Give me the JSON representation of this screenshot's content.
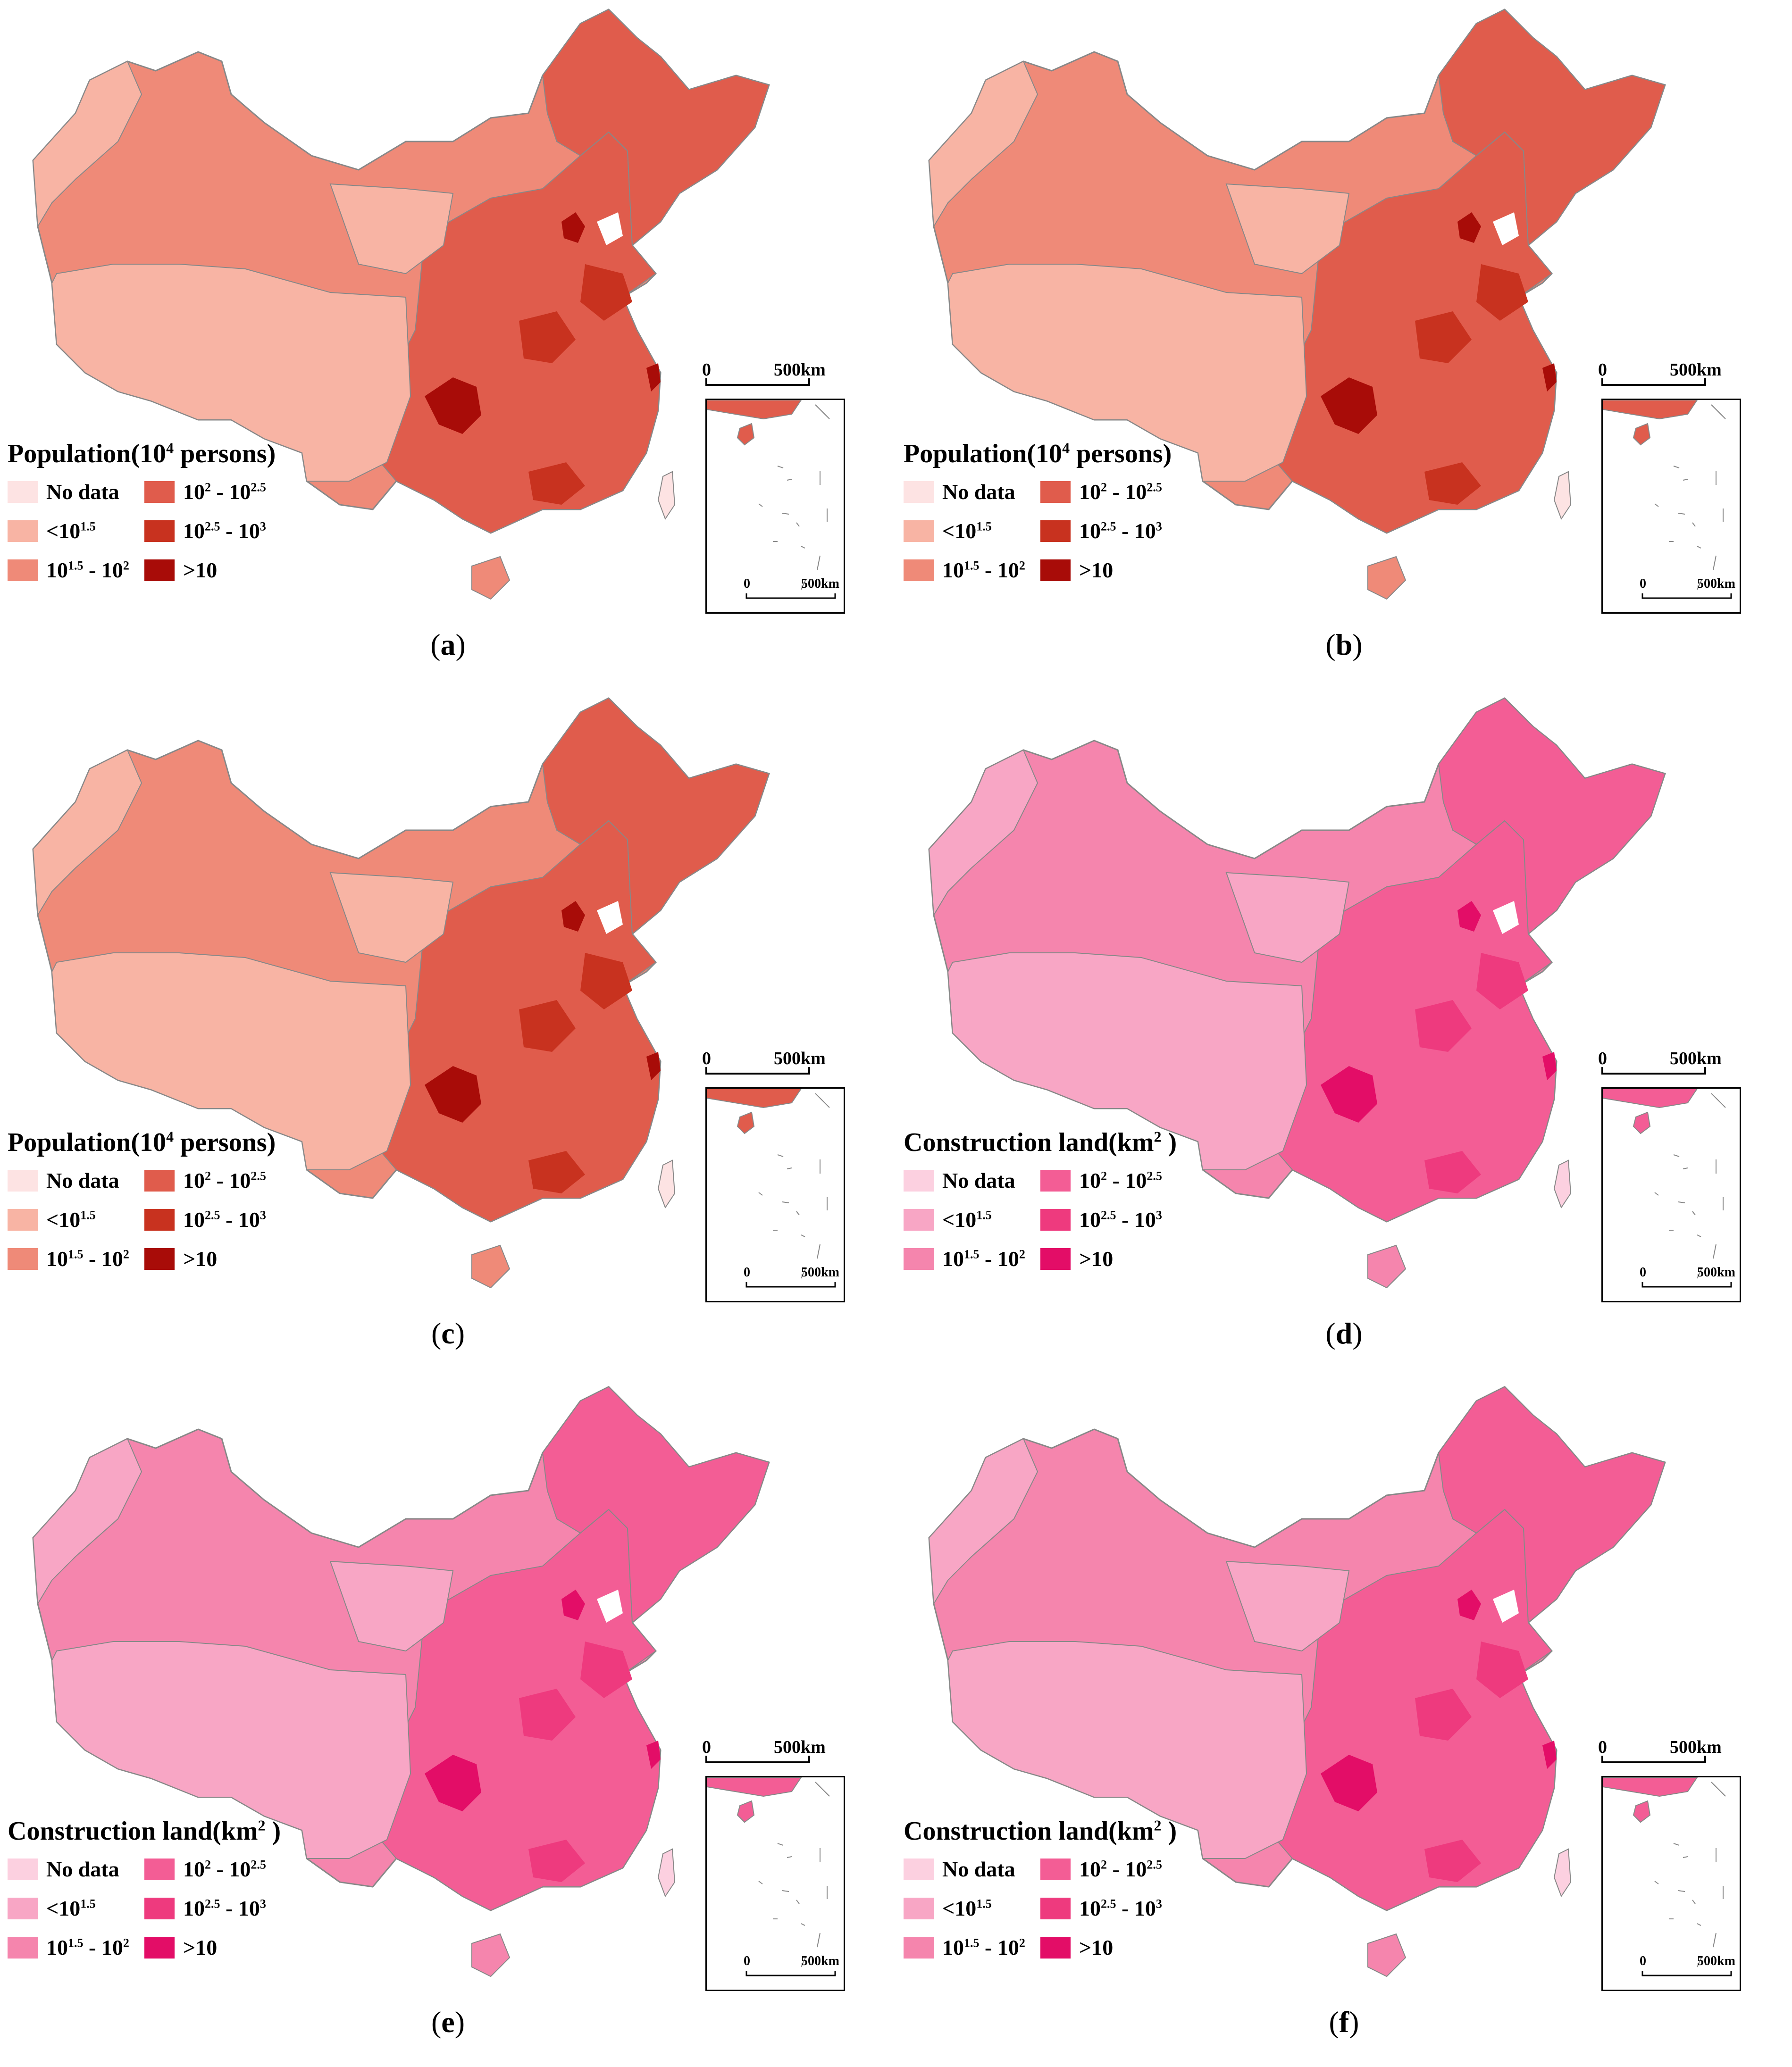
{
  "colors": {
    "population": [
      "#fde3e3",
      "#f8b4a4",
      "#ef8a78",
      "#e05c4c",
      "#c8321f",
      "#a80c08"
    ],
    "construction": [
      "#fcd0e0",
      "#f8a6c5",
      "#f585ad",
      "#f35d95",
      "#ee3a7e",
      "#e30d67"
    ]
  },
  "legend_labels": {
    "no_data": "No data",
    "lt": "<10",
    "lt_exp": "1.5",
    "b2_a": "10",
    "b2_a_exp": "1.5",
    "b2_sep": " - 10",
    "b2_b_exp": "2",
    "b3_a": "10",
    "b3_a_exp": "2",
    "b3_sep": " - 10",
    "b3_b_exp": "2.5",
    "b4_a": "10",
    "b4_a_exp": "2.5",
    "b4_sep": " - 10",
    "b4_b_exp": "3",
    "gt": ">10"
  },
  "scale": {
    "zero": "0",
    "dist": "500km"
  },
  "panels": [
    {
      "id": "a",
      "title_pre": "Population(10",
      "title_exp": "4",
      "title_post": " persons)",
      "scheme": "population",
      "caption": "a"
    },
    {
      "id": "b",
      "title_pre": "Population(10",
      "title_exp": "4",
      "title_post": " persons)",
      "scheme": "population",
      "caption": "b"
    },
    {
      "id": "c",
      "title_pre": "Population(10",
      "title_exp": "4",
      "title_post": " persons)",
      "scheme": "population",
      "caption": "c"
    },
    {
      "id": "d",
      "title_pre": "Construction land(km",
      "title_exp": "2",
      "title_post": " )",
      "scheme": "construction",
      "caption": "d"
    },
    {
      "id": "e",
      "title_pre": "Construction land(km",
      "title_exp": "2",
      "title_post": " )",
      "scheme": "construction",
      "caption": "e"
    },
    {
      "id": "f",
      "title_pre": "Construction land(km",
      "title_exp": "2",
      "title_post": " )",
      "scheme": "construction",
      "caption": "f"
    }
  ]
}
